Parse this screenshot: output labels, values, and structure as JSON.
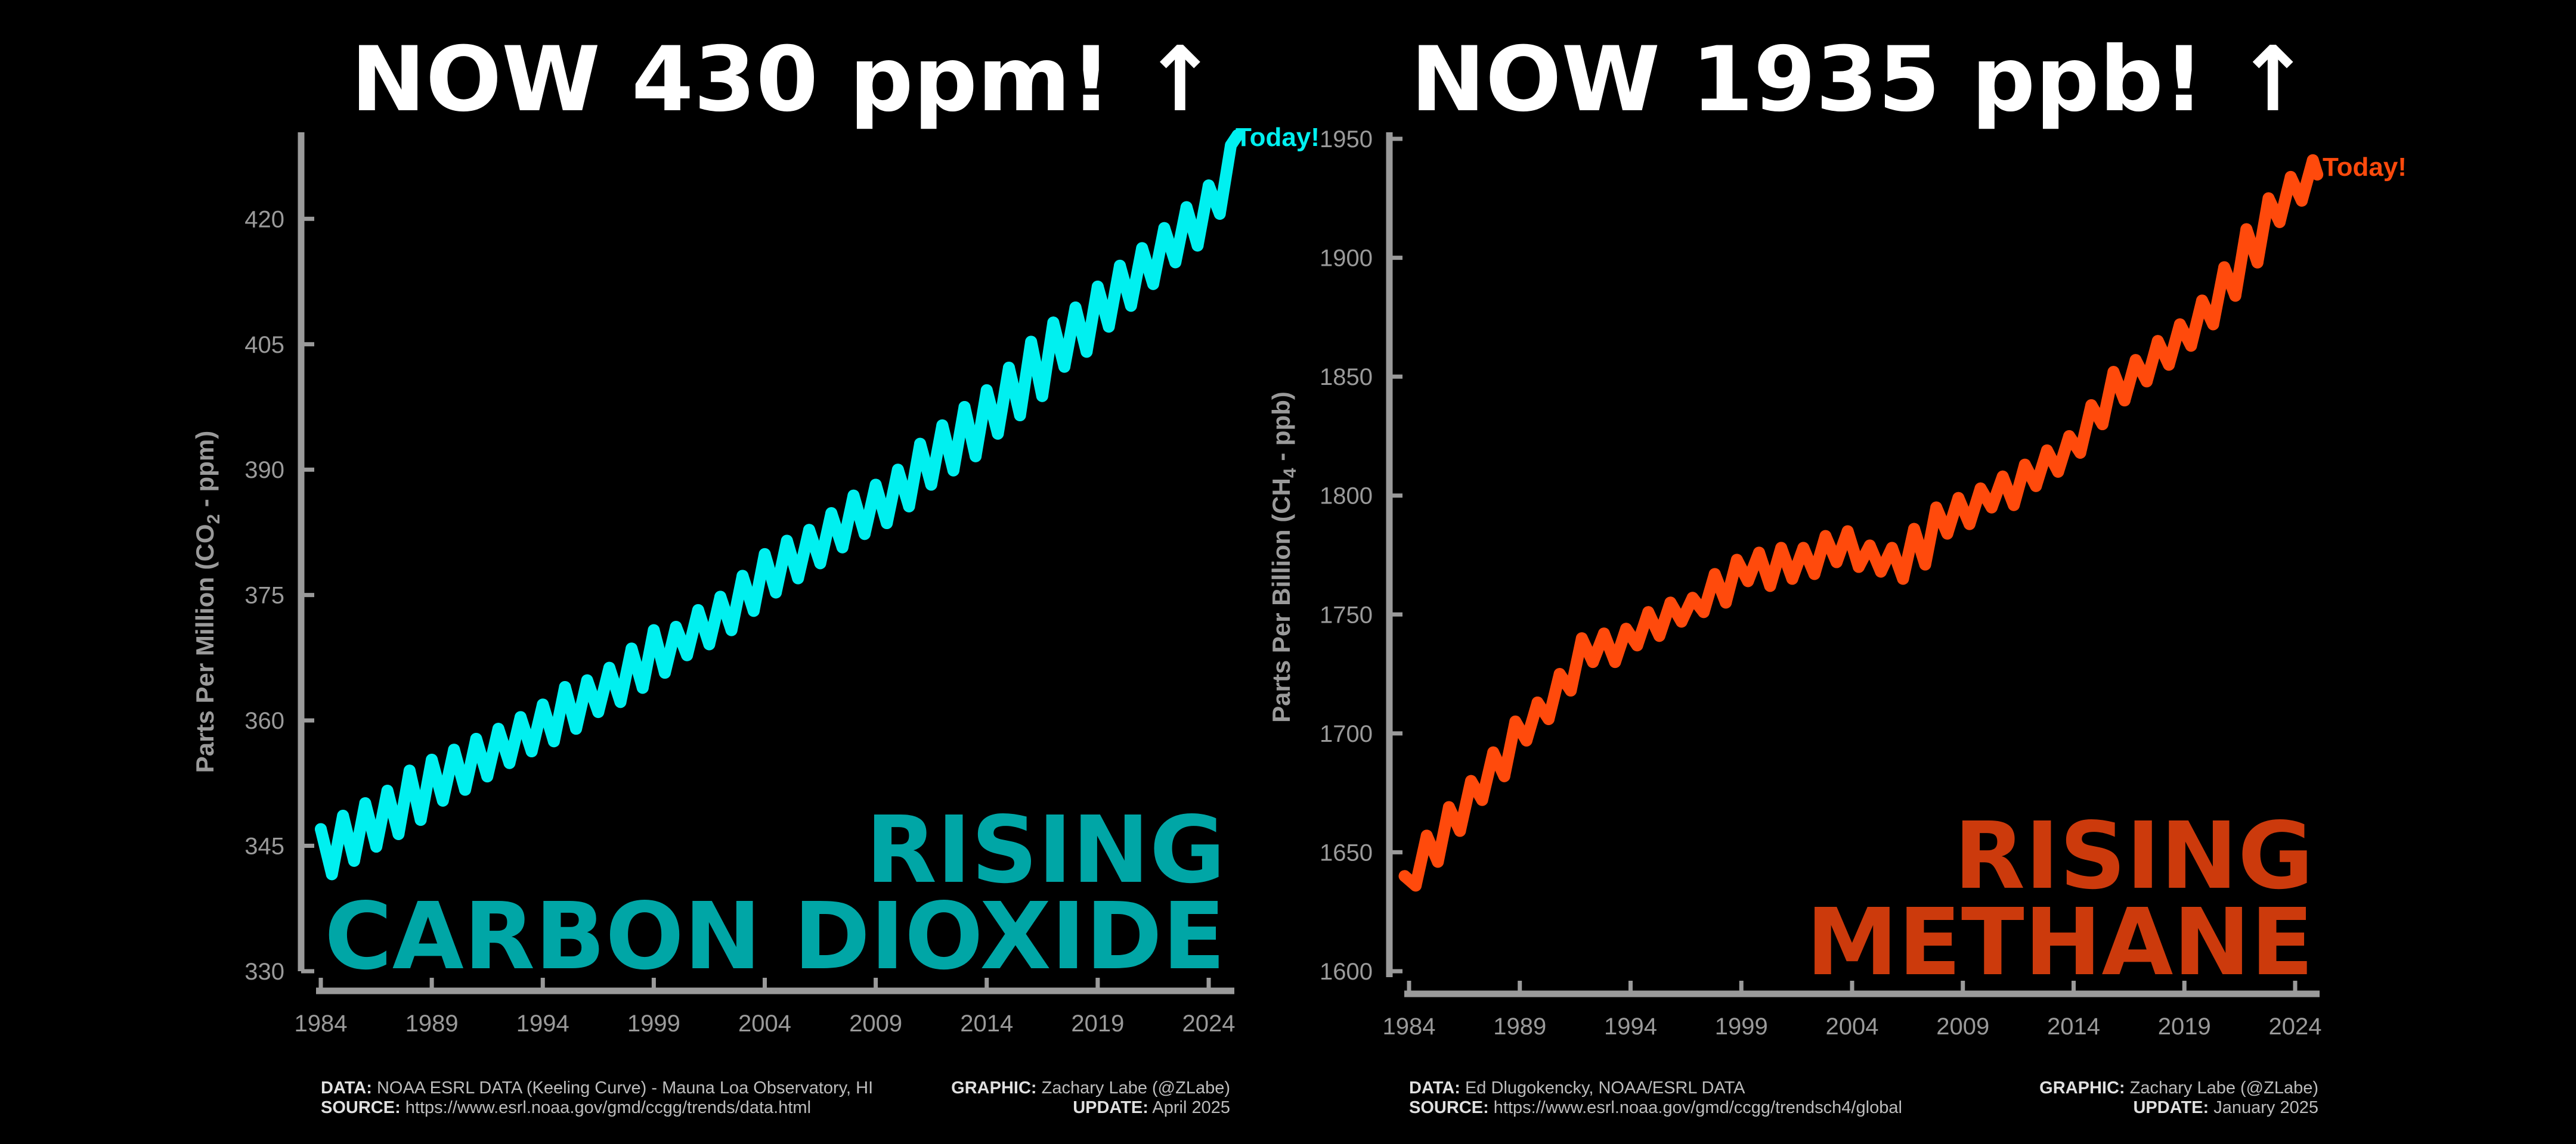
{
  "colors": {
    "co2": "#00f0f0",
    "co2_big": "#00a6a6",
    "ch4": "#ff4a0c",
    "ch4_big": "#cc3a0c",
    "axis": "#9a9a9a",
    "background": "#000000"
  },
  "chart_data": [
    {
      "type": "line",
      "title": "NOW 430 ppm! ↑",
      "ylabel": "Parts Per Million (CO2 - ppm)",
      "ylim": [
        330,
        430
      ],
      "xlim": [
        1984,
        2025.3
      ],
      "yticks": [
        330,
        345,
        360,
        375,
        390,
        405,
        420
      ],
      "xticks": [
        1984,
        1989,
        1994,
        1999,
        2004,
        2009,
        2014,
        2019,
        2024
      ],
      "annotation": "Today!",
      "big_label": [
        "RISING",
        "CARBON DIOXIDE"
      ],
      "series": [
        {
          "x": [
            1984.0,
            1984.5,
            1985.0,
            1985.5,
            1986.0,
            1986.5,
            1987.0,
            1987.5,
            1988.0,
            1988.5,
            1989.0,
            1989.5,
            1990.0,
            1990.5,
            1991.0,
            1991.5,
            1992.0,
            1992.5,
            1993.0,
            1993.5,
            1994.0,
            1994.5,
            1995.0,
            1995.5,
            1996.0,
            1996.5,
            1997.0,
            1997.5,
            1998.0,
            1998.5,
            1999.0,
            1999.5,
            2000.0,
            2000.5,
            2001.0,
            2001.5,
            2002.0,
            2002.5,
            2003.0,
            2003.5,
            2004.0,
            2004.5,
            2005.0,
            2005.5,
            2006.0,
            2006.5,
            2007.0,
            2007.5,
            2008.0,
            2008.5,
            2009.0,
            2009.5,
            2010.0,
            2010.5,
            2011.0,
            2011.5,
            2012.0,
            2012.5,
            2013.0,
            2013.5,
            2014.0,
            2014.5,
            2015.0,
            2015.5,
            2016.0,
            2016.5,
            2017.0,
            2017.5,
            2018.0,
            2018.5,
            2019.0,
            2019.5,
            2020.0,
            2020.5,
            2021.0,
            2021.5,
            2022.0,
            2022.5,
            2023.0,
            2023.5,
            2024.0,
            2024.5,
            2025.0,
            2025.3
          ],
          "y": [
            347.0,
            341.6,
            348.6,
            343.2,
            350.1,
            344.9,
            351.6,
            346.4,
            354.0,
            348.1,
            355.3,
            350.4,
            356.5,
            351.7,
            357.8,
            353.3,
            359.0,
            354.9,
            360.4,
            356.3,
            361.9,
            357.5,
            364.0,
            359.0,
            364.8,
            361.0,
            366.3,
            362.2,
            368.6,
            363.9,
            370.8,
            365.7,
            371.2,
            367.8,
            373.2,
            369.1,
            374.8,
            370.8,
            377.3,
            373.1,
            379.9,
            375.3,
            381.5,
            377.0,
            382.8,
            378.8,
            384.8,
            380.7,
            386.9,
            382.3,
            388.2,
            383.6,
            390.0,
            385.6,
            393.1,
            388.2,
            395.3,
            389.9,
            397.5,
            391.6,
            399.5,
            394.3,
            402.2,
            396.5,
            405.3,
            398.8,
            407.6,
            402.3,
            409.4,
            404.1,
            411.9,
            407.1,
            414.4,
            409.6,
            416.5,
            412.2,
            418.9,
            414.8,
            421.4,
            416.8,
            424.0,
            420.6,
            428.8,
            430.0
          ]
        }
      ]
    },
    {
      "type": "line",
      "title": "NOW 1935 ppb! ↑",
      "ylabel": "Parts Per Billion (CH4 - ppb)",
      "ylim": [
        1600,
        1950
      ],
      "xlim": [
        1984,
        2025.3
      ],
      "yticks": [
        1600,
        1650,
        1700,
        1750,
        1800,
        1850,
        1900,
        1950
      ],
      "xticks": [
        1984,
        1989,
        1994,
        1999,
        2004,
        2009,
        2014,
        2019,
        2024
      ],
      "annotation": "Today!",
      "big_label": [
        "RISING",
        "METHANE"
      ],
      "series": [
        {
          "x": [
            1983.8,
            1984.3,
            1984.8,
            1985.3,
            1985.8,
            1986.3,
            1986.8,
            1987.3,
            1987.8,
            1988.3,
            1988.8,
            1989.3,
            1989.8,
            1990.3,
            1990.8,
            1991.3,
            1991.8,
            1992.3,
            1992.8,
            1993.3,
            1993.8,
            1994.3,
            1994.8,
            1995.3,
            1995.8,
            1996.3,
            1996.8,
            1997.3,
            1997.8,
            1998.3,
            1998.8,
            1999.3,
            1999.8,
            2000.3,
            2000.8,
            2001.3,
            2001.8,
            2002.3,
            2002.8,
            2003.3,
            2003.8,
            2004.3,
            2004.8,
            2005.3,
            2005.8,
            2006.3,
            2006.8,
            2007.3,
            2007.8,
            2008.3,
            2008.8,
            2009.3,
            2009.8,
            2010.3,
            2010.8,
            2011.3,
            2011.8,
            2012.3,
            2012.8,
            2013.3,
            2013.8,
            2014.3,
            2014.8,
            2015.3,
            2015.8,
            2016.3,
            2016.8,
            2017.3,
            2017.8,
            2018.3,
            2018.8,
            2019.3,
            2019.8,
            2020.3,
            2020.8,
            2021.3,
            2021.8,
            2022.3,
            2022.8,
            2023.3,
            2023.8,
            2024.3,
            2024.8,
            2025.0
          ],
          "y": [
            1640,
            1636,
            1657,
            1646,
            1669,
            1659,
            1680,
            1672,
            1692,
            1682,
            1705,
            1697,
            1713,
            1706,
            1725,
            1718,
            1740,
            1730,
            1742,
            1730,
            1744,
            1737,
            1751,
            1741,
            1755,
            1747,
            1757,
            1751,
            1767,
            1755,
            1773,
            1764,
            1776,
            1762,
            1778,
            1765,
            1778,
            1767,
            1783,
            1772,
            1785,
            1770,
            1779,
            1768,
            1778,
            1765,
            1786,
            1771,
            1795,
            1784,
            1799,
            1788,
            1803,
            1795,
            1808,
            1796,
            1813,
            1804,
            1819,
            1810,
            1825,
            1818,
            1838,
            1830,
            1852,
            1840,
            1857,
            1848,
            1865,
            1855,
            1872,
            1863,
            1882,
            1872,
            1896,
            1884,
            1912,
            1898,
            1925,
            1915,
            1934,
            1924,
            1941,
            1935
          ]
        }
      ]
    }
  ],
  "footer": {
    "co2": {
      "data_label": "DATA:",
      "data_text": "NOAA ESRL DATA (Keeling Curve) - Mauna Loa Observatory, HI",
      "source_label": "SOURCE:",
      "source_text": "https://www.esrl.noaa.gov/gmd/ccgg/trends/data.html",
      "graphic_label": "GRAPHIC:",
      "graphic_text": "Zachary Labe (@ZLabe)",
      "update_label": "UPDATE:",
      "update_text": "April 2025"
    },
    "ch4": {
      "data_label": "DATA:",
      "data_text": "Ed Dlugokencky, NOAA/ESRL DATA",
      "source_label": "SOURCE:",
      "source_text": "https://www.esrl.noaa.gov/gmd/ccgg/trendsch4/global",
      "graphic_label": "GRAPHIC:",
      "graphic_text": "Zachary Labe (@ZLabe)",
      "update_label": "UPDATE:",
      "update_text": "January 2025"
    }
  }
}
